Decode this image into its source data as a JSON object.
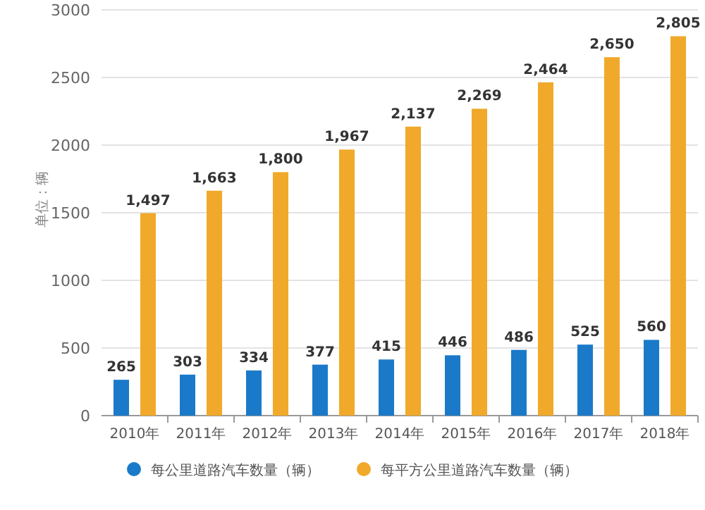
{
  "chart_data": {
    "type": "bar",
    "ylabel": "单位：辆",
    "categories": [
      "2010年",
      "2011年",
      "2012年",
      "2013年",
      "2014年",
      "2015年",
      "2016年",
      "2017年",
      "2018年"
    ],
    "series": [
      {
        "name": "每公里道路汽车数量（辆）",
        "color": "#1a7ac9",
        "values": [
          265,
          303,
          334,
          377,
          415,
          446,
          486,
          525,
          560
        ],
        "value_labels": [
          "265",
          "303",
          "334",
          "377",
          "415",
          "446",
          "486",
          "525",
          "560"
        ]
      },
      {
        "name": "每平方公里道路汽车数量（辆）",
        "color": "#f0a92a",
        "values": [
          1497,
          1663,
          1800,
          1967,
          2137,
          2269,
          2464,
          2650,
          2805
        ],
        "value_labels": [
          "1,497",
          "1,663",
          "1,800",
          "1,967",
          "2,137",
          "2,269",
          "2,464",
          "2,650",
          "2,805"
        ]
      }
    ],
    "ylim": [
      0,
      3000
    ],
    "yticks": [
      0,
      500,
      1000,
      1500,
      2000,
      2500,
      3000
    ],
    "grid": "y",
    "legend": "bottom"
  }
}
